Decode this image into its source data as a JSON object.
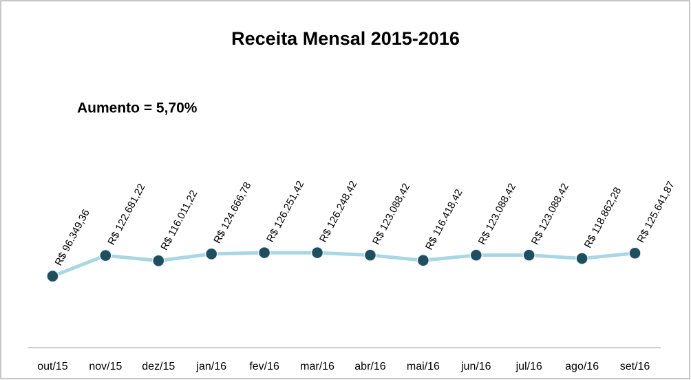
{
  "chart_data": {
    "type": "line",
    "title": "Receita Mensal 2015-2016",
    "annotation": "Aumento = 5,70%",
    "categories": [
      "out/15",
      "nov/15",
      "dez/15",
      "jan/16",
      "fev/16",
      "mar/16",
      "abr/16",
      "mai/16",
      "jun/16",
      "jul/16",
      "ago/16",
      "set/16"
    ],
    "values": [
      96349.36,
      122681.22,
      116011.22,
      124666.78,
      126251.42,
      126248.42,
      123088.42,
      116418.42,
      123088.42,
      123088.42,
      118862.28,
      125641.87
    ],
    "value_labels": [
      "R$ 96.349,36",
      "R$ 122.681,22",
      "R$ 116.011,22",
      "R$ 124.666,78",
      "R$ 126.251,42",
      "R$ 126.248,42",
      "R$ 123.088,42",
      "R$ 116.418,42",
      "R$ 123.088,42",
      "R$ 123.088,42",
      "R$ 118.862,28",
      "R$ 125.641,87"
    ],
    "line_color": "#a9d6e5",
    "marker_color": "#1f4e5f",
    "ylim": [
      0,
      350000
    ]
  }
}
